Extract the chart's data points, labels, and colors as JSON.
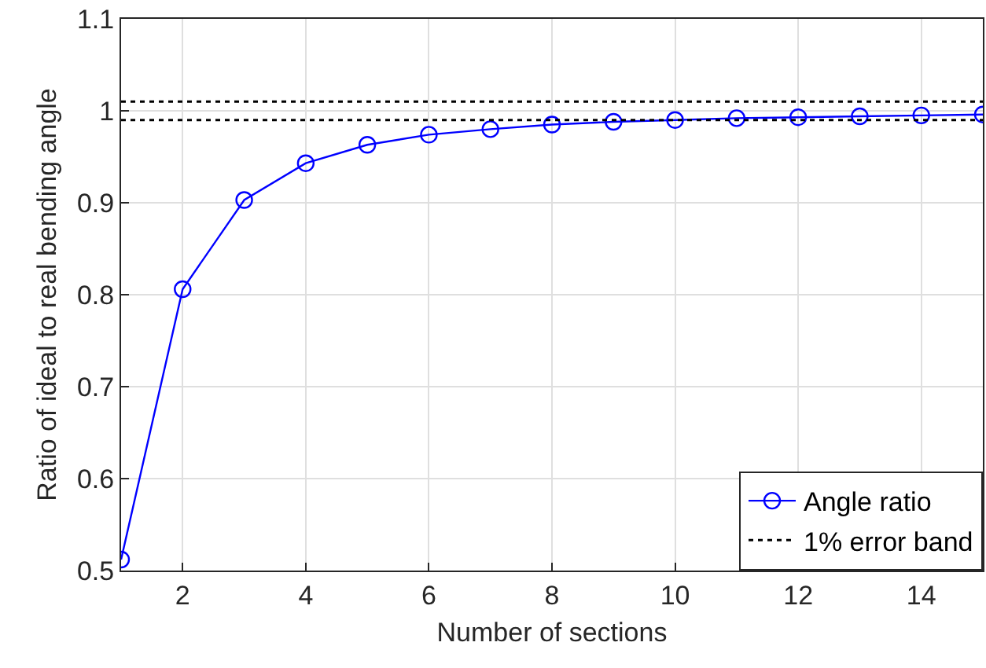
{
  "chart_data": {
    "type": "line",
    "xlabel": "Number of sections",
    "ylabel": "Ratio of ideal to real bending angle",
    "x": [
      1,
      2,
      3,
      4,
      5,
      6,
      7,
      8,
      9,
      10,
      11,
      12,
      13,
      14,
      15
    ],
    "series": [
      {
        "name": "Angle ratio",
        "color": "#0000ff",
        "values": [
          0.512,
          0.806,
          0.903,
          0.943,
          0.963,
          0.974,
          0.98,
          0.985,
          0.988,
          0.99,
          0.992,
          0.993,
          0.994,
          0.995,
          0.996
        ]
      }
    ],
    "xlim": [
      1,
      15
    ],
    "xticks": [
      2,
      4,
      6,
      8,
      10,
      12,
      14
    ],
    "ylim": [
      0.5,
      1.1
    ],
    "yticks": [
      0.5,
      0.6,
      0.7,
      0.8,
      0.9,
      1,
      1.1
    ],
    "ref_lines": [
      {
        "axis": "y",
        "value": 1.01,
        "label": "1% error band",
        "color": "#000000",
        "line_style": "dotted"
      },
      {
        "axis": "y",
        "value": 0.99,
        "color": "#000000",
        "line_style": "dotted"
      }
    ],
    "grid": true,
    "legend": "bottom right",
    "marker": "circle",
    "line_style": "solid"
  }
}
